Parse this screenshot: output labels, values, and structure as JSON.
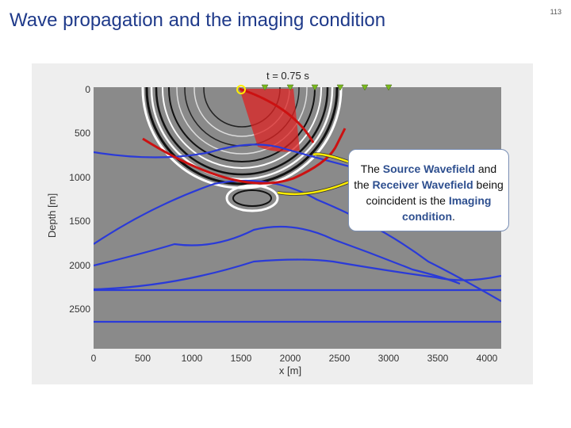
{
  "slide": {
    "title": "Wave propagation and the imaging condition",
    "page_number": "113"
  },
  "figure": {
    "time_label": "t = 0.75 s",
    "ylabel": "Depth [m]",
    "xlabel": "x [m]",
    "x_ticks": [
      "0",
      "500",
      "1000",
      "1500",
      "2000",
      "2500",
      "3000",
      "3500",
      "4000"
    ],
    "y_ticks": [
      "0",
      "500",
      "1000",
      "1500",
      "2000",
      "2500"
    ],
    "colors": {
      "background_gray": "#8a8a8a",
      "reflector_blue": "#2a3ad8",
      "wavefront_red": "#cc1111",
      "receiver_green": "#7ab81f",
      "arrow_yellow": "#ffee00"
    }
  },
  "callout": {
    "line1_pre": "The ",
    "source_wavefield": "Source Wavefield",
    "line1_post": " and the ",
    "receiver_wavefield": "Receiver Wavefield",
    "middle": " being coincident is the ",
    "imaging_condition": "Imaging condition",
    "end": "."
  }
}
